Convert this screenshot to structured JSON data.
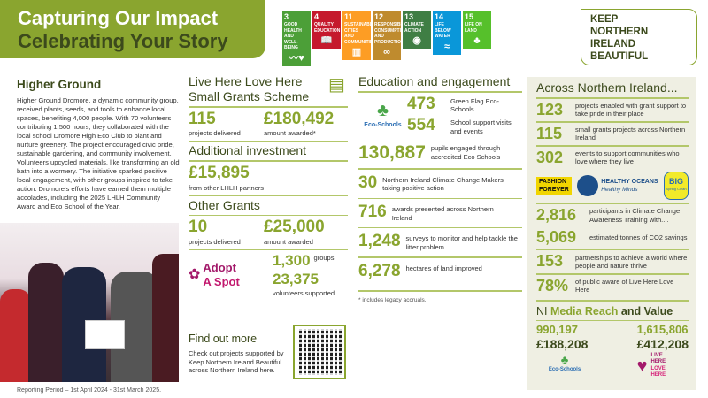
{
  "header": {
    "title_line1": "Capturing Our Impact",
    "title_line2": "Celebrating Your Story"
  },
  "sdgs": [
    {
      "num": "3",
      "label": "GOOD HEALTH AND WELL-BEING",
      "color": "#4c9f38",
      "icon": "heartbeat-icon",
      "glyph": "〰♥"
    },
    {
      "num": "4",
      "label": "QUALITY EDUCATION",
      "color": "#c5192d",
      "icon": "book-icon",
      "glyph": "📖"
    },
    {
      "num": "11",
      "label": "SUSTAINABLE CITIES AND COMMUNITIES",
      "color": "#fd9d24",
      "icon": "city-icon",
      "glyph": "▥"
    },
    {
      "num": "12",
      "label": "RESPONSIBLE CONSUMPTION AND PRODUCTION",
      "color": "#bf8b2e",
      "icon": "infinity-icon",
      "glyph": "∞"
    },
    {
      "num": "13",
      "label": "CLIMATE ACTION",
      "color": "#3f7e44",
      "icon": "eye-globe-icon",
      "glyph": "◉"
    },
    {
      "num": "14",
      "label": "LIFE BELOW WATER",
      "color": "#0a97d9",
      "icon": "fish-icon",
      "glyph": "≈"
    },
    {
      "num": "15",
      "label": "LIFE ON LAND",
      "color": "#56c02b",
      "icon": "tree-icon",
      "glyph": "♣"
    }
  ],
  "logo": {
    "lines": [
      "KEEP",
      "NORTHERN",
      "IRELAND",
      "BEAUTIFUL"
    ]
  },
  "higher_ground": {
    "title": "Higher Ground",
    "body": "Higher Ground Dromore, a dynamic community group, received plants, seeds, and tools to enhance local spaces, benefiting 4,000 people. With 70 volunteers contributing 1,500 hours, they collaborated with the local school Dromore High Eco Club to plant and nurture greenery. The project encouraged civic pride, sustainable gardening, and community involvement. Volunteers upcycled materials, like transforming an old bath into a wormery. The initiative sparked positive local engagement, with other groups inspired to take action. Dromore's efforts have earned them multiple accolades, including the 2025 LHLH Community Award and Eco School of the Year."
  },
  "footer": {
    "reporting_period": "Reporting Period – 1st April 2024 - 31st March 2025."
  },
  "grants": {
    "title_line1": "Live Here Love Here",
    "title_line2": "Small Grants Scheme",
    "projects": "115",
    "projects_label": "projects delivered",
    "amount": "£180,492",
    "amount_label": "amount awarded*",
    "additional_title": "Additional investment",
    "additional_amount": "£15,895",
    "additional_label": "from other LHLH partners",
    "other_title": "Other Grants",
    "other_projects": "10",
    "other_projects_label": "projects delivered",
    "other_amount": "£25,000",
    "other_amount_label": "amount awarded",
    "adopt_logo_line1": "Adopt",
    "adopt_logo_line2": "A Spot",
    "groups": "1,300",
    "groups_label": "groups",
    "volunteers": "23,375",
    "volunteers_label": "volunteers supported"
  },
  "find_out": {
    "title": "Find out more",
    "body": "Check out projects supported by Keep Northern Ireland Beautiful across Northern Ireland here."
  },
  "education": {
    "title": "Education and engagement",
    "eco_logo": "Eco-Schools",
    "items": [
      {
        "value": "473",
        "label": "Green Flag Eco-Schools"
      },
      {
        "value": "554",
        "label": "School support visits and events"
      },
      {
        "value": "130,887",
        "label": "pupils engaged through accredited Eco Schools"
      },
      {
        "value": "30",
        "label": "Northern Ireland Climate Change Makers taking positive action"
      },
      {
        "value": "716",
        "label": "awards presented across Northern Ireland"
      },
      {
        "value": "1,248",
        "label": "surveys to monitor and help tackle the litter problem"
      },
      {
        "value": "6,278",
        "label": "hectares of land improved"
      }
    ],
    "footnote": "* includes legacy accruals."
  },
  "across": {
    "title": "Across Northern Ireland...",
    "items": [
      {
        "value": "123",
        "label": "projects enabled with grant support to take pride in their place"
      },
      {
        "value": "115",
        "label": "small grants projects across Northern Ireland"
      },
      {
        "value": "302",
        "label": "events to support communities who love where they live"
      },
      {
        "value": "2,816",
        "label": "participants in Climate Change Awareness Training with...."
      },
      {
        "value": "5,069",
        "label": "estimated tonnes of CO2 savings"
      },
      {
        "value": "153",
        "label": "partnerships to achieve a world where people and nature thrive"
      },
      {
        "value": "78%",
        "label": "of public aware of Live Here Love Here"
      }
    ],
    "logos": {
      "fashion1": "FASHION",
      "fashion2": "FOREVER",
      "oceans1": "HEALTHY OCEANS",
      "oceans2": "Healthy Minds",
      "big1": "BIG",
      "big2": "Spring Clean"
    }
  },
  "media": {
    "title_a": "NI",
    "title_b": "Media Reach",
    "title_c": "and Value",
    "eco_reach": "990,197",
    "eco_value": "£188,208",
    "eco_logo": "Eco-Schools",
    "lhlh_reach": "1,615,806",
    "lhlh_value": "£412,208",
    "lhlh_logo": [
      "LIVE",
      "HERE",
      "LOVE",
      "HERE"
    ]
  },
  "colors": {
    "green": "#8aa52f",
    "dark_green": "#3c4a1c",
    "magenta": "#a3196a",
    "panel": "#efefe3"
  }
}
